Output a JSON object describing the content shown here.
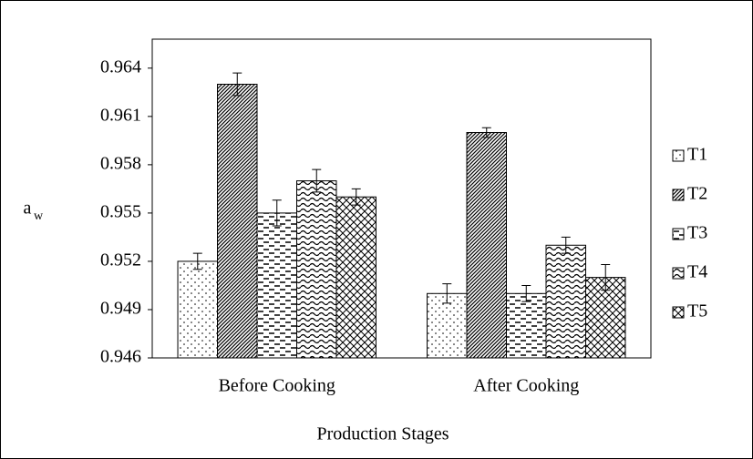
{
  "chart_data": {
    "type": "bar",
    "x_label": "Production Stages",
    "y_label": "a",
    "y_label_sub": "w",
    "categories": [
      "Before Cooking",
      "After Cooking"
    ],
    "series": [
      {
        "name": "T1",
        "color": "#000000",
        "pattern": "dots",
        "values": [
          0.952,
          0.95
        ],
        "errors": [
          0.0005,
          0.0006
        ]
      },
      {
        "name": "T2",
        "color": "#000000",
        "pattern": "diagonal",
        "values": [
          0.963,
          0.96
        ],
        "errors": [
          0.0007,
          0.0003
        ]
      },
      {
        "name": "T3",
        "color": "#000000",
        "pattern": "dashes",
        "values": [
          0.955,
          0.95
        ],
        "errors": [
          0.0008,
          0.0005
        ]
      },
      {
        "name": "T4",
        "color": "#000000",
        "pattern": "waves",
        "values": [
          0.957,
          0.953
        ],
        "errors": [
          0.0007,
          0.0005
        ]
      },
      {
        "name": "T5",
        "color": "#000000",
        "pattern": "crosshatch",
        "values": [
          0.956,
          0.951
        ],
        "errors": [
          0.0005,
          0.0008
        ]
      }
    ],
    "ylim": [
      0.946,
      0.9658
    ],
    "yticks": [
      0.946,
      0.949,
      0.952,
      0.955,
      0.958,
      0.961,
      0.964
    ],
    "legend": "right"
  }
}
